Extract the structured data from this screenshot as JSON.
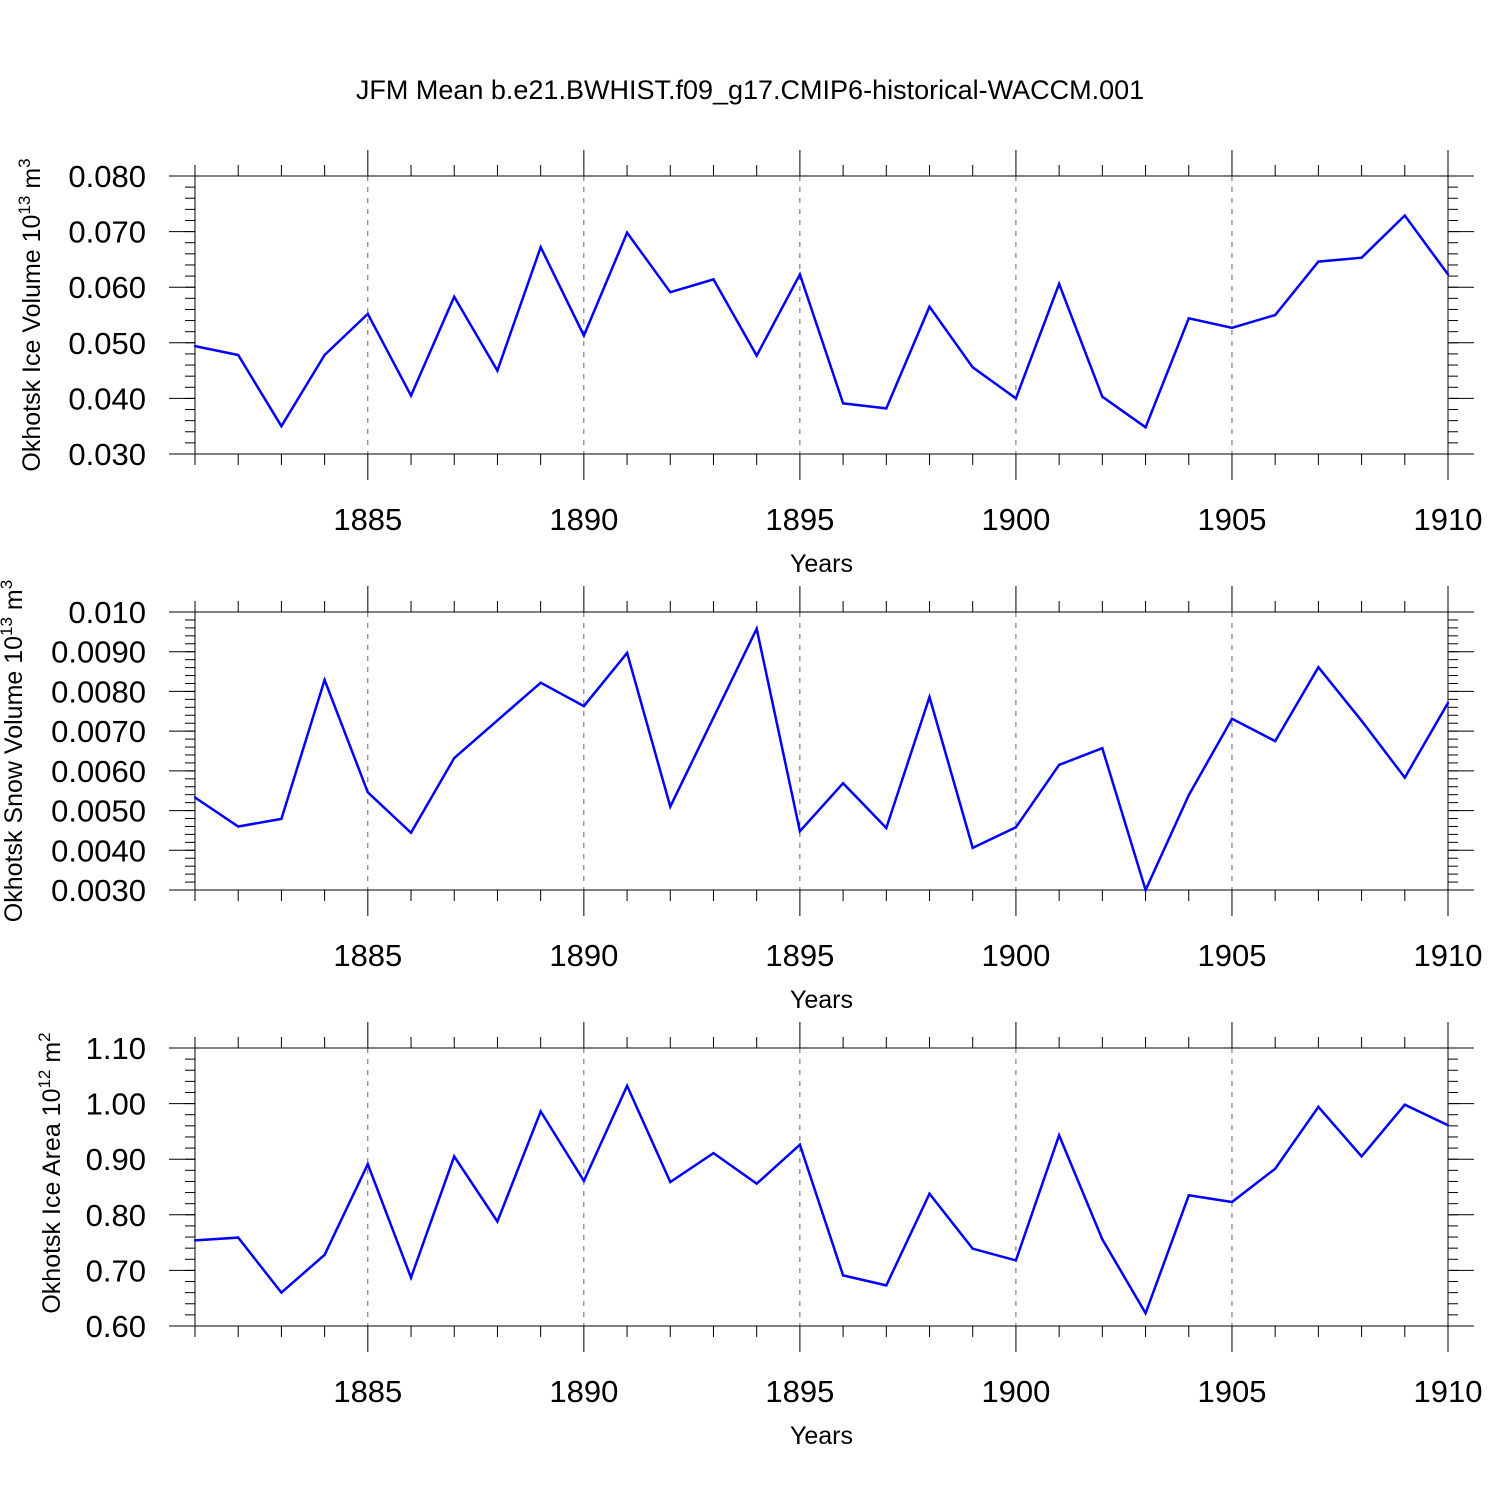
{
  "title": "JFM Mean b.e21.BWHIST.f09_g17.CMIP6-historical-WACCM.001",
  "colors": {
    "line": "#0000ff",
    "axis": "#000000",
    "background": "#ffffff"
  },
  "chart_data": [
    {
      "type": "line",
      "name": "ice-volume",
      "ylabel": "Okhotsk Ice Volume 10^13 m^3",
      "ylabel_main": "Okhotsk Ice Volume 10",
      "ylabel_exp": "13",
      "ylabel_unit": " m",
      "ylabel_unit_exp": "3",
      "xlabel": "Years",
      "xlim": [
        1881,
        1910
      ],
      "ylim": [
        0.03,
        0.08
      ],
      "x_ticks": [
        1885,
        1890,
        1895,
        1900,
        1905,
        1910
      ],
      "x_tick_labels": [
        "1885",
        "1890",
        "1895",
        "1900",
        "1905",
        "1910"
      ],
      "y_ticks": [
        0.03,
        0.04,
        0.05,
        0.06,
        0.07,
        0.08
      ],
      "y_tick_labels": [
        "0.030",
        "0.040",
        "0.050",
        "0.060",
        "0.070",
        "0.080"
      ],
      "y_minor_step": 0.002,
      "grid": "x-major-dashed",
      "x": [
        1881,
        1882,
        1883,
        1884,
        1885,
        1886,
        1887,
        1888,
        1889,
        1890,
        1891,
        1892,
        1893,
        1894,
        1895,
        1896,
        1897,
        1898,
        1899,
        1900,
        1901,
        1902,
        1903,
        1904,
        1905,
        1906,
        1907,
        1908,
        1909,
        1910
      ],
      "values": [
        0.0494,
        0.0478,
        0.035,
        0.0478,
        0.0552,
        0.0405,
        0.0583,
        0.045,
        0.0672,
        0.0513,
        0.0698,
        0.0591,
        0.0614,
        0.0477,
        0.0623,
        0.0391,
        0.0382,
        0.0565,
        0.0456,
        0.04,
        0.0606,
        0.0403,
        0.0348,
        0.0544,
        0.0527,
        0.055,
        0.0646,
        0.0653,
        0.0729,
        0.0623
      ]
    },
    {
      "type": "line",
      "name": "snow-volume",
      "ylabel": "Okhotsk Snow Volume 10^13 m^3",
      "ylabel_main": "Okhotsk Snow Volume 10",
      "ylabel_exp": "13",
      "ylabel_unit": " m",
      "ylabel_unit_exp": "3",
      "xlabel": "Years",
      "xlim": [
        1881,
        1910
      ],
      "ylim": [
        0.003,
        0.01
      ],
      "x_ticks": [
        1885,
        1890,
        1895,
        1900,
        1905,
        1910
      ],
      "x_tick_labels": [
        "1885",
        "1890",
        "1895",
        "1900",
        "1905",
        "1910"
      ],
      "y_ticks": [
        0.003,
        0.004,
        0.005,
        0.006,
        0.007,
        0.008,
        0.009,
        0.01
      ],
      "y_tick_labels": [
        "0.0030",
        "0.0040",
        "0.0050",
        "0.0060",
        "0.0070",
        "0.0080",
        "0.0090",
        "0.010"
      ],
      "y_minor_step": 0.0002,
      "grid": "x-major-dashed",
      "x": [
        1881,
        1882,
        1883,
        1884,
        1885,
        1886,
        1887,
        1888,
        1889,
        1890,
        1891,
        1892,
        1893,
        1894,
        1895,
        1896,
        1897,
        1898,
        1899,
        1900,
        1901,
        1902,
        1903,
        1904,
        1905,
        1906,
        1907,
        1908,
        1909,
        1910
      ],
      "values": [
        0.00533,
        0.0046,
        0.00479,
        0.00829,
        0.00546,
        0.00444,
        0.00632,
        0.00727,
        0.00822,
        0.00763,
        0.00897,
        0.0051,
        0.00734,
        0.00958,
        0.00448,
        0.00569,
        0.00456,
        0.00786,
        0.00406,
        0.00458,
        0.00615,
        0.00657,
        0.003,
        0.00539,
        0.00731,
        0.00675,
        0.00861,
        0.00726,
        0.00583,
        0.00771
      ]
    },
    {
      "type": "line",
      "name": "ice-area",
      "ylabel": "Okhotsk Ice Area 10^12 m^2",
      "ylabel_main": "Okhotsk Ice Area 10",
      "ylabel_exp": "12",
      "ylabel_unit": " m",
      "ylabel_unit_exp": "2",
      "xlabel": "Years",
      "xlim": [
        1881,
        1910
      ],
      "ylim": [
        0.6,
        1.1
      ],
      "x_ticks": [
        1885,
        1890,
        1895,
        1900,
        1905,
        1910
      ],
      "x_tick_labels": [
        "1885",
        "1890",
        "1895",
        "1900",
        "1905",
        "1910"
      ],
      "y_ticks": [
        0.6,
        0.7,
        0.8,
        0.9,
        1.0,
        1.1
      ],
      "y_tick_labels": [
        "0.60",
        "0.70",
        "0.80",
        "0.90",
        "1.00",
        "1.10"
      ],
      "y_minor_step": 0.02,
      "grid": "x-major-dashed",
      "x": [
        1881,
        1882,
        1883,
        1884,
        1885,
        1886,
        1887,
        1888,
        1889,
        1890,
        1891,
        1892,
        1893,
        1894,
        1895,
        1896,
        1897,
        1898,
        1899,
        1900,
        1901,
        1902,
        1903,
        1904,
        1905,
        1906,
        1907,
        1908,
        1909,
        1910
      ],
      "values": [
        0.754,
        0.759,
        0.66,
        0.728,
        0.891,
        0.687,
        0.905,
        0.788,
        0.986,
        0.861,
        1.032,
        0.859,
        0.911,
        0.856,
        0.926,
        0.691,
        0.673,
        0.838,
        0.739,
        0.718,
        0.943,
        0.756,
        0.623,
        0.835,
        0.823,
        0.883,
        0.994,
        0.905,
        0.998,
        0.961
      ]
    }
  ]
}
